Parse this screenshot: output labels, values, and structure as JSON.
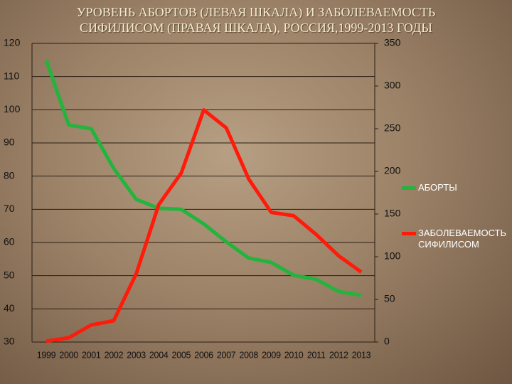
{
  "chart_data": {
    "type": "line",
    "title": "УРОВЕНЬ АБОРТОВ (ЛЕВАЯ ШКАЛА) И ЗАБОЛЕВАЕМОСТЬ СИФИЛИСОМ (ПРАВАЯ ШКАЛА), РОССИЯ,1999-2013 ГОДЫ",
    "categories": [
      "1999",
      "2000",
      "2001",
      "2002",
      "2003",
      "2004",
      "2005",
      "2006",
      "2007",
      "2008",
      "2009",
      "2010",
      "2011",
      "2012",
      "2013"
    ],
    "series": [
      {
        "name": "АБОРТЫ",
        "color": "#22b43c",
        "values": [
          115,
          95.4,
          94.3,
          82.3,
          73,
          70.3,
          70,
          65.6,
          60.2,
          55.3,
          54,
          50.1,
          48.9,
          45.2,
          44.1
        ]
      },
      {
        "name": "ЗАБОЛЕВАЕМОСТЬ СИФИЛИСОМ",
        "color": "#ff1a0a",
        "axis": "y2",
        "values": [
          1,
          5,
          20,
          25,
          80,
          161,
          198,
          272,
          251,
          191,
          152,
          148,
          126,
          101,
          82
        ]
      }
    ],
    "ylim": [
      30,
      120
    ],
    "yticks": [
      30,
      40,
      50,
      60,
      70,
      80,
      90,
      100,
      110,
      120
    ],
    "y2lim": [
      0,
      350
    ],
    "y2ticks": [
      0,
      50,
      100,
      150,
      200,
      250,
      300,
      350
    ],
    "grid": true,
    "legend": "right"
  }
}
